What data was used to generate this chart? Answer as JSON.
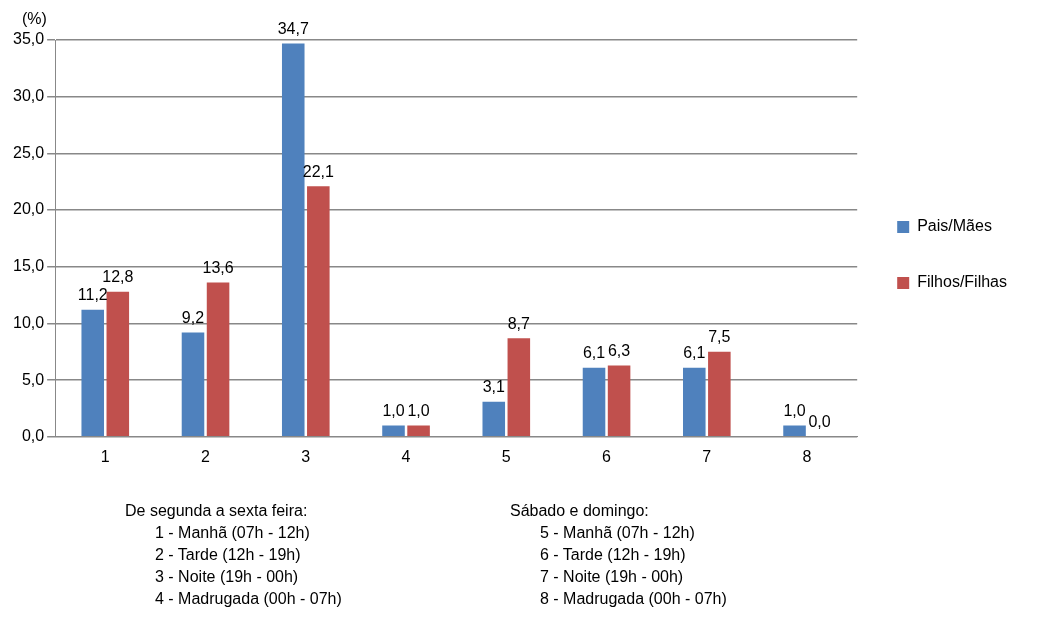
{
  "chart_data": {
    "type": "bar",
    "ylabel": "(%)",
    "categories": [
      "1",
      "2",
      "3",
      "4",
      "5",
      "6",
      "7",
      "8"
    ],
    "series": [
      {
        "name": "Pais/Mães",
        "color": "#4f81bd",
        "values": [
          11.2,
          9.2,
          34.7,
          1.0,
          3.1,
          6.1,
          6.1,
          1.0
        ],
        "value_labels": [
          "11,2",
          "9,2",
          "34,7",
          "1,0",
          "3,1",
          "6,1",
          "6,1",
          "1,0"
        ]
      },
      {
        "name": "Filhos/Filhas",
        "color": "#c0504d",
        "values": [
          12.8,
          13.6,
          22.1,
          1.0,
          8.7,
          6.3,
          7.5,
          0.0
        ],
        "value_labels": [
          "12,8",
          "13,6",
          "22,1",
          "1,0",
          "8,7",
          "6,3",
          "7,5",
          "0,0"
        ]
      }
    ],
    "ylim": [
      0,
      35
    ],
    "yticks": [
      {
        "value": 0,
        "label": "0,0"
      },
      {
        "value": 5,
        "label": "5,0"
      },
      {
        "value": 10,
        "label": "10,0"
      },
      {
        "value": 15,
        "label": "15,0"
      },
      {
        "value": 20,
        "label": "20,0"
      },
      {
        "value": 25,
        "label": "25,0"
      },
      {
        "value": 30,
        "label": "30,0"
      },
      {
        "value": 35,
        "label": "35,0"
      }
    ],
    "grid": "y",
    "legend": "right",
    "annotations": [
      "De segunda a sexta feira:",
      "1 - Manhã (07h - 12h)",
      "2 - Tarde (12h - 19h)",
      "3 - Noite (19h - 00h)",
      "4 - Madrugada (00h - 07h)",
      "Sábado e domingo:",
      "5 - Manhã (07h - 12h)",
      "6 - Tarde (12h - 19h)",
      "7 - Noite (19h - 00h)",
      "8 - Madrugada (00h - 07h)"
    ]
  }
}
